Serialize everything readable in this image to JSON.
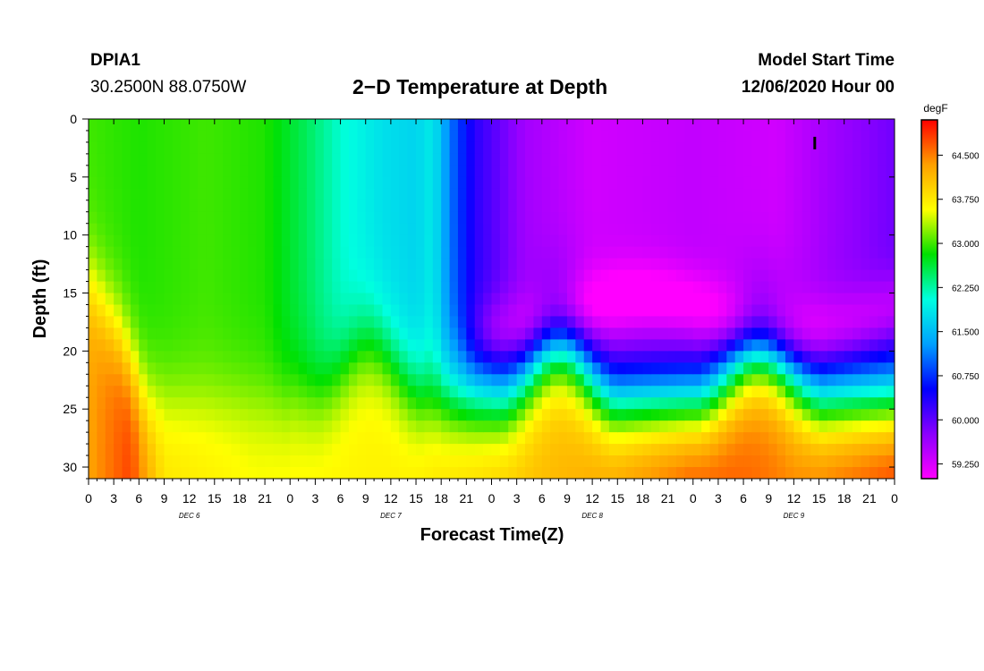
{
  "header": {
    "station": "DPIA1",
    "coords": "30.2500N 88.0750W",
    "title": "2−D Temperature at Depth",
    "start_label": "Model Start Time",
    "start_value": "12/06/2020 Hour 00"
  },
  "chart_data": {
    "type": "heatmap",
    "title": "2−D Temperature at Depth",
    "xlabel": "Forecast Time(Z)",
    "ylabel": "Depth (ft)",
    "x_hours_range": [
      0,
      96
    ],
    "x_tick_labels": [
      "0",
      "3",
      "6",
      "9",
      "12",
      "15",
      "18",
      "21",
      "0",
      "3",
      "6",
      "9",
      "12",
      "15",
      "18",
      "21",
      "0",
      "3",
      "6",
      "9",
      "12",
      "15",
      "18",
      "21",
      "0",
      "3",
      "6",
      "9",
      "12",
      "15",
      "18",
      "21",
      "0"
    ],
    "day_labels": [
      {
        "label": "DEC 6",
        "hour": 12
      },
      {
        "label": "DEC 7",
        "hour": 36
      },
      {
        "label": "DEC 8",
        "hour": 60
      },
      {
        "label": "DEC 9",
        "hour": 84
      }
    ],
    "y_range": [
      0,
      31
    ],
    "y_ticks": [
      0,
      5,
      10,
      15,
      20,
      25,
      30
    ],
    "colorbar": {
      "unit": "degF",
      "range": [
        59.0,
        65.1
      ],
      "ticks": [
        "64.500",
        "63.750",
        "63.000",
        "62.250",
        "61.500",
        "60.750",
        "60.000",
        "59.250"
      ],
      "colors": [
        "#ff00ff",
        "#8a00ff",
        "#0000ff",
        "#00a0ff",
        "#00ffe0",
        "#00e000",
        "#ffff00",
        "#ffa000",
        "#ff0000"
      ]
    },
    "marker": {
      "hour": 86.5,
      "depth": 2
    },
    "features": {
      "surface_layer": [
        {
          "hour": 0,
          "temp": 63.0
        },
        {
          "hour": 6,
          "temp": 62.9
        },
        {
          "hour": 14,
          "temp": 63.0
        },
        {
          "hour": 21,
          "temp": 62.9
        },
        {
          "hour": 26,
          "temp": 62.5
        },
        {
          "hour": 30,
          "temp": 62.1
        },
        {
          "hour": 35,
          "temp": 61.8
        },
        {
          "hour": 39,
          "temp": 61.7
        },
        {
          "hour": 41,
          "temp": 61.9
        },
        {
          "hour": 43,
          "temp": 61.1
        },
        {
          "hour": 46,
          "temp": 60.3
        },
        {
          "hour": 52,
          "temp": 59.6
        },
        {
          "hour": 60,
          "temp": 59.3
        },
        {
          "hour": 72,
          "temp": 59.4
        },
        {
          "hour": 82,
          "temp": 59.3
        },
        {
          "hour": 88,
          "temp": 59.6
        },
        {
          "hour": 96,
          "temp": 59.9
        }
      ],
      "bottom_layer": [
        {
          "hour": 0,
          "temp": 64.3
        },
        {
          "hour": 5,
          "temp": 64.8
        },
        {
          "hour": 9,
          "temp": 63.8
        },
        {
          "hour": 20,
          "temp": 63.6
        },
        {
          "hour": 38,
          "temp": 63.7
        },
        {
          "hour": 48,
          "temp": 64.0
        },
        {
          "hour": 58,
          "temp": 64.2
        },
        {
          "hour": 72,
          "temp": 64.8
        },
        {
          "hour": 84,
          "temp": 64.5
        },
        {
          "hour": 96,
          "temp": 64.9
        }
      ]
    }
  }
}
